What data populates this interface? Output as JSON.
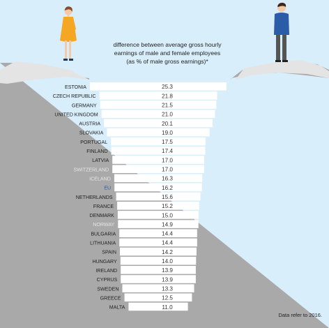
{
  "colors": {
    "sky": "#d9eefb",
    "ground": "#a9a9a9",
    "step": "#ffffff",
    "label": "#222222",
    "label_non_eu": "#e6e6e6",
    "label_eu": "#2c5fae",
    "value": "#333333"
  },
  "figures": {
    "left": "woman-figure",
    "right": "man-figure"
  },
  "chart_data": {
    "type": "bar",
    "title": "difference between average gross hourly earnings of male and female employees (as % of male gross earnings)*",
    "title_lines": [
      "difference between average gross hourly",
      "earnings of male and female employees",
      "(as % of male gross earnings)*"
    ],
    "note": "Data refer to 2016.",
    "categories": [
      "ESTONIA",
      "CZECH REPUBLIC",
      "GERMANY",
      "UNITED KINGDOM",
      "AUSTRIA",
      "SLOVAKIA",
      "PORTUGAL",
      "FINLAND",
      "LATVIA",
      "SWITZERLAND",
      "ICELAND",
      "EU",
      "NETHERLANDS",
      "FRANCE",
      "DENMARK",
      "NORWAY",
      "BULGARIA",
      "LITHUANIA",
      "SPAIN",
      "HUNGARY",
      "IRELAND",
      "CYPRUS",
      "SWEDEN",
      "GREECE",
      "MALTA"
    ],
    "values": [
      25.3,
      21.8,
      21.5,
      21.0,
      20.1,
      19.0,
      17.5,
      17.4,
      17.0,
      17.0,
      16.3,
      16.2,
      15.6,
      15.2,
      15.0,
      14.9,
      14.4,
      14.4,
      14.2,
      14.0,
      13.9,
      13.9,
      13.3,
      12.5,
      11.0
    ],
    "value_labels": [
      "25.3",
      "21.8",
      "21.5",
      "21.0",
      "20.1",
      "19.0",
      "17.5",
      "17.4",
      "17.0",
      "17.0",
      "16.3",
      "16.2",
      "15.6",
      "15.2",
      "15.0",
      "14.9",
      "14.4",
      "14.4",
      "14.2",
      "14.0",
      "13.9",
      "13.9",
      "13.3",
      "12.5",
      "11.0"
    ],
    "label_group": [
      "eu",
      "eu",
      "eu",
      "eu",
      "eu",
      "eu",
      "eu",
      "eu",
      "eu",
      "non-eu",
      "non-eu",
      "aggregate",
      "eu",
      "eu",
      "eu",
      "non-eu",
      "eu",
      "eu",
      "eu",
      "eu",
      "eu",
      "eu",
      "eu",
      "eu",
      "eu"
    ],
    "orientation": "horizontal",
    "bar_alignment": "centered",
    "xlim": [
      0,
      25.3
    ]
  }
}
